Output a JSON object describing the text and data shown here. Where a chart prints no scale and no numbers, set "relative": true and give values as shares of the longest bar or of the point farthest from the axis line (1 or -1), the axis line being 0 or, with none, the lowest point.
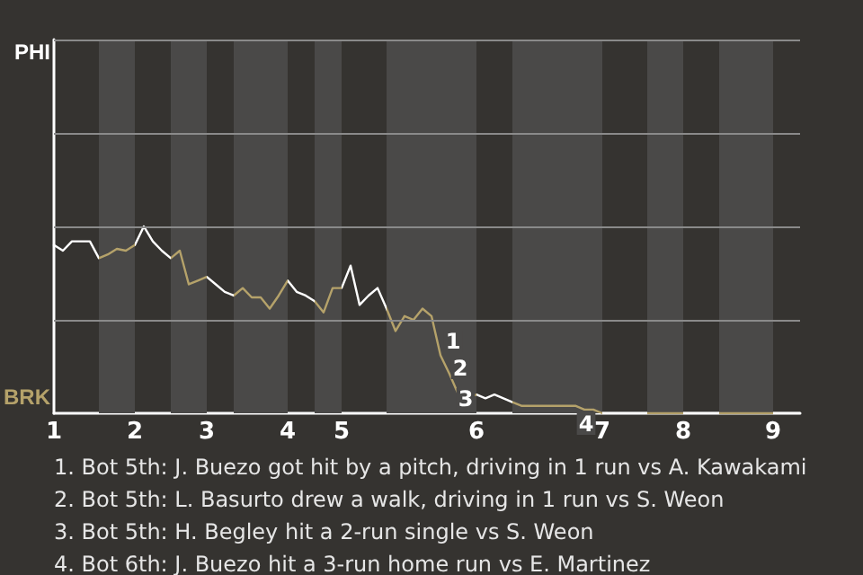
{
  "chart_data": {
    "type": "line",
    "relative": true,
    "categories": [
      "1",
      null,
      null,
      null,
      null,
      null,
      null,
      null,
      null,
      "2",
      null,
      null,
      null,
      null,
      null,
      null,
      null,
      "3",
      null,
      null,
      null,
      null,
      null,
      null,
      null,
      null,
      "4",
      null,
      null,
      null,
      null,
      null,
      "5",
      null,
      null,
      null,
      null,
      null,
      null,
      null,
      null,
      null,
      null,
      null,
      null,
      null,
      null,
      "6",
      null,
      null,
      null,
      null,
      null,
      null,
      null,
      null,
      null,
      null,
      null,
      null,
      null,
      "7",
      null,
      null,
      null,
      null,
      null,
      null,
      null,
      null,
      "8",
      null,
      null,
      null,
      null,
      null,
      null,
      null,
      null,
      null,
      "9",
      null,
      null,
      null
    ],
    "marker": "none",
    "line_style": "solid",
    "ref_lines": [
      {
        "axis": "y",
        "value": 0.5,
        "color": "#8a8a8a"
      },
      {
        "axis": "y",
        "value": 1,
        "color": "#8a8a8a"
      },
      {
        "axis": "y",
        "value": 1.5,
        "color": "#8a8a8a"
      },
      {
        "axis": "y",
        "value": 2,
        "color": "#8a8a8a"
      }
    ],
    "series": [
      {
        "color": "#ffffff",
        "values": [
          0.9,
          0.87,
          0.92,
          0.92,
          0.92,
          0.83,
          0.85,
          0.88,
          0.87,
          0.9,
          1,
          0.92,
          0.87,
          0.83,
          0.87,
          0.69,
          0.71,
          0.73,
          0.69,
          0.65,
          0.63,
          0.67,
          0.62,
          0.62,
          0.56,
          0.63,
          0.71,
          0.65,
          0.63,
          0.6,
          0.54,
          0.67,
          0.67,
          0.79,
          0.58,
          0.63,
          0.67,
          0.56,
          0.44,
          0.52,
          0.5,
          0.56,
          0.52,
          0.31,
          0.21,
          0.1,
          0.08,
          0.1,
          0.08,
          0.1,
          0.08,
          0.06,
          0.04,
          0.04,
          0.04,
          0.04,
          0.04,
          0.04,
          0.04,
          0.02,
          0.02,
          0,
          0,
          0,
          0,
          0,
          0,
          0,
          0,
          0,
          0,
          0,
          0,
          0,
          0,
          0,
          0,
          0,
          0,
          0,
          0,
          0,
          0,
          0
        ],
        "colors": [
          "#ffffff",
          "#ffffff",
          "#ffffff",
          "#ffffff",
          "#ffffff",
          "#b5a26a",
          "#b5a26a",
          "#b5a26a",
          "#b5a26a",
          "#ffffff",
          "#ffffff",
          "#ffffff",
          "#ffffff",
          "#b5a26a",
          "#b5a26a",
          "#b5a26a",
          "#b5a26a",
          "#ffffff",
          "#ffffff",
          "#ffffff",
          "#b5a26a",
          "#b5a26a",
          "#b5a26a",
          "#b5a26a",
          "#b5a26a",
          "#b5a26a",
          "#ffffff",
          "#ffffff",
          "#ffffff",
          "#b5a26a",
          "#b5a26a",
          "#b5a26a",
          "#ffffff",
          "#ffffff",
          "#ffffff",
          "#ffffff",
          "#ffffff",
          "#b5a26a",
          "#b5a26a",
          "#b5a26a",
          "#b5a26a",
          "#b5a26a",
          "#b5a26a",
          "#b5a26a",
          "#b5a26a",
          "#b5a26a",
          "#b5a26a",
          "#ffffff",
          "#ffffff",
          "#ffffff",
          "#ffffff",
          "#b5a26a",
          "#b5a26a",
          "#b5a26a",
          "#b5a26a",
          "#b5a26a",
          "#b5a26a",
          "#b5a26a",
          "#b5a26a",
          "#b5a26a",
          "#b5a26a",
          "#ffffff",
          "#ffffff",
          "#ffffff",
          "#ffffff",
          "#ffffff",
          "#b5a26a",
          "#b5a26a",
          "#b5a26a",
          "#b5a26a",
          "#ffffff",
          "#ffffff",
          "#ffffff",
          "#ffffff",
          "#b5a26a",
          "#b5a26a",
          "#b5a26a",
          "#b5a26a",
          "#b5a26a",
          "#b5a26a",
          "#ffffff",
          "#ffffff",
          "#ffffff",
          "#ffffff"
        ]
      }
    ],
    "annotations": [
      "PHI",
      "BRK",
      "1",
      "2",
      "3",
      "4",
      "1. Bot 5th: J. Buezo got hit by a pitch, driving in 1 run vs A. Kawakami",
      "2. Bot 5th: L. Basurto drew a walk, driving in 1 run vs S. Weon",
      "3. Bot 5th: H. Begley hit a 2-run single vs S. Weon",
      "4. Bot 6th: J. Buezo hit a 3-run home run vs E. Martinez"
    ]
  }
}
